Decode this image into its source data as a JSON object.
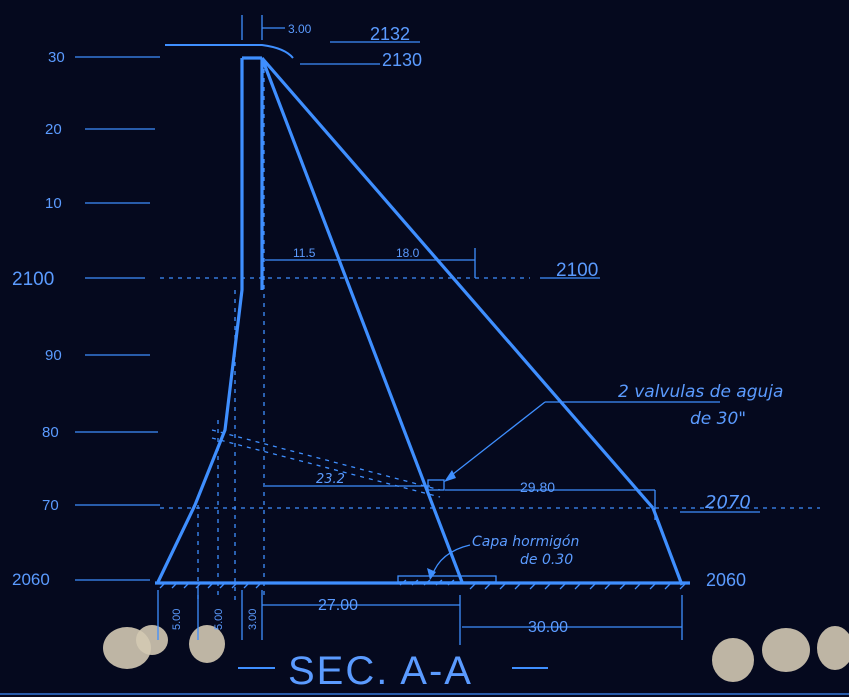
{
  "title": "SEC. A-A",
  "left_scale": [
    "30",
    "20",
    "10",
    "2100",
    "90",
    "80",
    "70",
    "2060"
  ],
  "right_levels": [
    "2132",
    "2130",
    "2100",
    "2070",
    "2060"
  ],
  "dimensions": {
    "crest_width": "3.00",
    "d1": "11.5",
    "d2": "18.0",
    "d3": "23.2",
    "d4": "29.80",
    "base_a": "5.00",
    "base_b": "5.00",
    "base_c": "3.00",
    "base_d": "27.00",
    "base_e": "30.00"
  },
  "annotations": {
    "valves_line1": "2 valvulas de aguja",
    "valves_line2": "de 30\"",
    "concrete_line1": "Capa hormigón",
    "concrete_line2": "de 0.30"
  },
  "colors": {
    "background": "#05091e",
    "line": "#3f8fff",
    "text": "#5b9bff"
  }
}
